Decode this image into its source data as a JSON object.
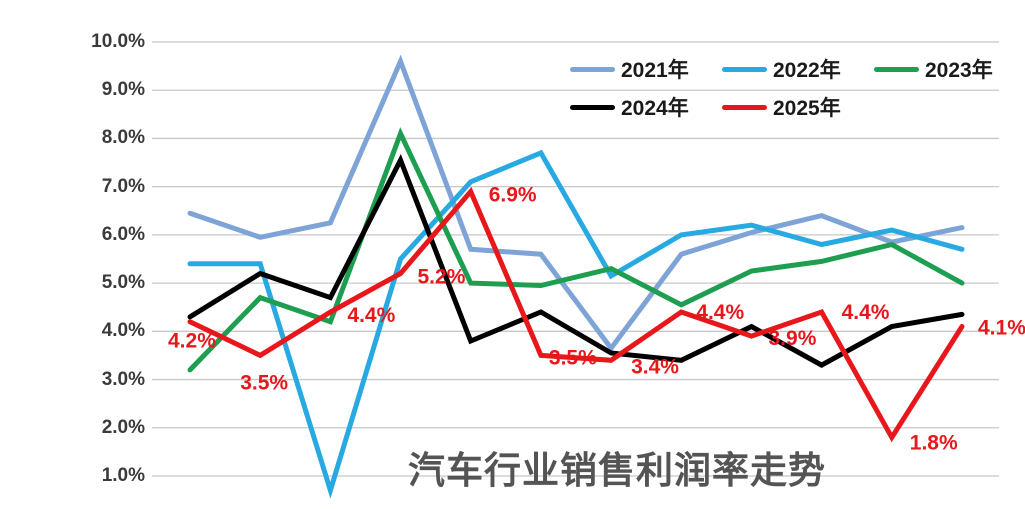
{
  "title": "汽车行业销售利润率走势",
  "colors": {
    "background": "#ffffff",
    "gridline": "#c8c8c8",
    "title_text": "#545454",
    "tick_label": "#3a3a3a",
    "legend_text": "#1a1a1a",
    "data_label": "#e8171b"
  },
  "legend": {
    "position": "top-right",
    "rows": [
      3,
      2
    ]
  },
  "chart_data": {
    "type": "line",
    "title": "汽车行业销售利润率走势",
    "xlabel": "",
    "ylabel": "",
    "x_point_count": 12,
    "x_tick_labels_visible": false,
    "grid": "horizontal-only",
    "ylim": [
      1.0,
      10.0
    ],
    "yticks": [
      {
        "label": "10.0%",
        "value": 10
      },
      {
        "label": "9.0%",
        "value": 9
      },
      {
        "label": "8.0%",
        "value": 8
      },
      {
        "label": "7.0%",
        "value": 7
      },
      {
        "label": "6.0%",
        "value": 6
      },
      {
        "label": "5.0%",
        "value": 5
      },
      {
        "label": "4.0%",
        "value": 4
      },
      {
        "label": "3.0%",
        "value": 3
      },
      {
        "label": "2.0%",
        "value": 2
      },
      {
        "label": "1.0%",
        "value": 1
      }
    ],
    "series": [
      {
        "name": "2021年",
        "color": "#7ea3d6",
        "values": [
          6.45,
          5.95,
          6.25,
          9.6,
          5.7,
          5.6,
          3.65,
          5.6,
          6.05,
          6.4,
          5.85,
          6.15
        ]
      },
      {
        "name": "2022年",
        "color": "#28a9e1",
        "values": [
          5.4,
          5.4,
          0.7,
          5.5,
          7.1,
          7.7,
          5.15,
          6.0,
          6.2,
          5.8,
          6.1,
          5.7
        ]
      },
      {
        "name": "2023年",
        "color": "#1e9e50",
        "values": [
          3.2,
          4.7,
          4.2,
          8.1,
          5.0,
          4.95,
          5.3,
          4.55,
          5.25,
          5.45,
          5.8,
          5.0
        ]
      },
      {
        "name": "2024年",
        "color": "#000000",
        "values": [
          4.3,
          5.2,
          4.7,
          7.55,
          3.8,
          4.4,
          3.55,
          3.4,
          4.1,
          3.3,
          4.1,
          4.35
        ]
      },
      {
        "name": "2025年",
        "color": "#e8171b",
        "values": [
          4.2,
          3.5,
          4.4,
          5.2,
          6.9,
          3.5,
          3.4,
          4.4,
          3.9,
          4.4,
          1.8,
          4.1
        ],
        "data_labels": [
          {
            "text": "4.2%",
            "dx": -22,
            "dy": 26
          },
          {
            "text": "3.5%",
            "dx": -20,
            "dy": 34
          },
          {
            "text": "4.4%",
            "dx": 17,
            "dy": 10
          },
          {
            "text": "5.2%",
            "dx": 17,
            "dy": 10
          },
          {
            "text": "6.9%",
            "dx": 18,
            "dy": 10
          },
          {
            "text": "3.5%",
            "dx": 8,
            "dy": 9
          },
          {
            "text": "3.4%",
            "dx": 20,
            "dy": 13
          },
          {
            "text": "4.4%",
            "dx": 15,
            "dy": 7
          },
          {
            "text": "3.9%",
            "dx": 17,
            "dy": 9
          },
          {
            "text": "4.4%",
            "dx": 20,
            "dy": 7
          },
          {
            "text": "1.8%",
            "dx": 18,
            "dy": 12
          },
          {
            "text": "4.1%",
            "dx": 16,
            "dy": 8
          }
        ]
      }
    ]
  }
}
